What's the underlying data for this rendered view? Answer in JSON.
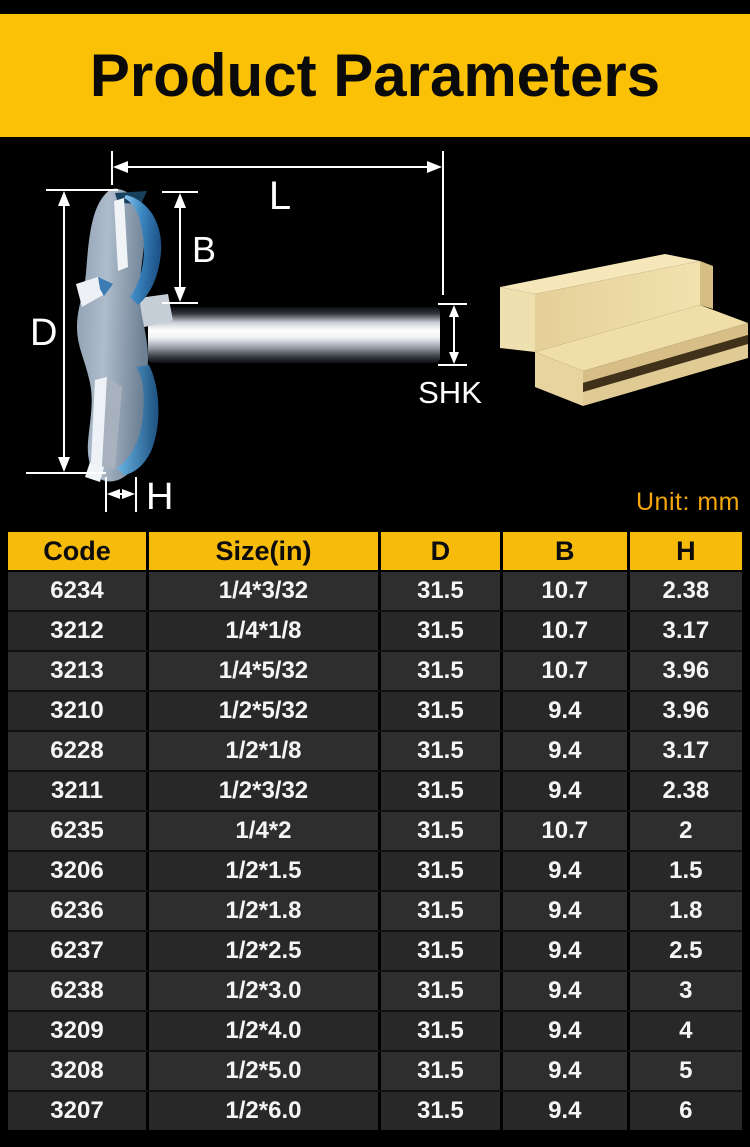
{
  "banner": {
    "title": "Product Parameters"
  },
  "diagram": {
    "labels": {
      "l": "L",
      "b": "B",
      "d": "D",
      "shk": "SHK",
      "h": "H"
    },
    "unit_label": "Unit: mm"
  },
  "colors": {
    "page_bg": "#000000",
    "banner_yellow": "#FBC107",
    "table_header_yellow": "#F7BB0B",
    "unit_text": "#F3A70D",
    "row_bg": "#2D2D2D",
    "row_text": "#F5F5F5",
    "cutter_blue": "#4E9ED8",
    "wood_tan": "#EAD7A2"
  },
  "table": {
    "headers": [
      "Code",
      "Size(in)",
      "D",
      "B",
      "H"
    ],
    "rows": [
      [
        "6234",
        "1/4*3/32",
        "31.5",
        "10.7",
        "2.38"
      ],
      [
        "3212",
        "1/4*1/8",
        "31.5",
        "10.7",
        "3.17"
      ],
      [
        "3213",
        "1/4*5/32",
        "31.5",
        "10.7",
        "3.96"
      ],
      [
        "3210",
        "1/2*5/32",
        "31.5",
        "9.4",
        "3.96"
      ],
      [
        "6228",
        "1/2*1/8",
        "31.5",
        "9.4",
        "3.17"
      ],
      [
        "3211",
        "1/2*3/32",
        "31.5",
        "9.4",
        "2.38"
      ],
      [
        "6235",
        "1/4*2",
        "31.5",
        "10.7",
        "2"
      ],
      [
        "3206",
        "1/2*1.5",
        "31.5",
        "9.4",
        "1.5"
      ],
      [
        "6236",
        "1/2*1.8",
        "31.5",
        "9.4",
        "1.8"
      ],
      [
        "6237",
        "1/2*2.5",
        "31.5",
        "9.4",
        "2.5"
      ],
      [
        "6238",
        "1/2*3.0",
        "31.5",
        "9.4",
        "3"
      ],
      [
        "3209",
        "1/2*4.0",
        "31.5",
        "9.4",
        "4"
      ],
      [
        "3208",
        "1/2*5.0",
        "31.5",
        "9.4",
        "5"
      ],
      [
        "3207",
        "1/2*6.0",
        "31.5",
        "9.4",
        "6"
      ]
    ]
  }
}
